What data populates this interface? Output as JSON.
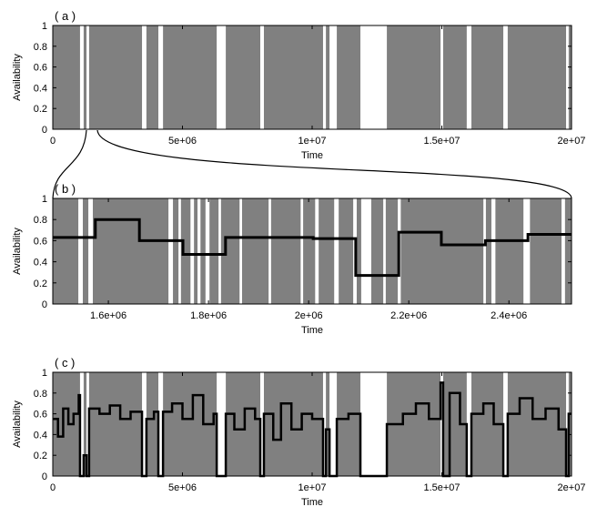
{
  "chart_data": [
    {
      "type": "step",
      "title": "( a )",
      "xlabel": "Time",
      "ylabel": "Availability",
      "xlim": [
        0,
        20000000
      ],
      "ylim": [
        0,
        1
      ],
      "xticks": [
        0,
        {
          "value": 5000000,
          "label": "5e+06"
        },
        {
          "value": 10000000,
          "label": "1e+07"
        },
        {
          "value": 15000000,
          "label": "1.5e+07"
        },
        {
          "value": 20000000,
          "label": "2e+07"
        }
      ],
      "yticks": [
        0,
        0.2,
        0.4,
        0.6,
        0.8,
        1
      ],
      "series": [
        {
          "style": "bars",
          "color": "#808080",
          "x": [
            0,
            1050000,
            1190000,
            1300000,
            1400000,
            3440000,
            3610000,
            4070000,
            4250000,
            6320000,
            6670000,
            8000000,
            8140000,
            10420000,
            10530000,
            10670000,
            10950000,
            11860000,
            12880000,
            14950000,
            15050000,
            15960000,
            16140000,
            17370000,
            17540000,
            19790000,
            19890000
          ],
          "values": [
            1,
            0,
            1,
            0,
            1,
            0,
            1,
            0,
            1,
            0,
            1,
            0,
            1,
            0,
            1,
            0,
            1,
            0,
            1,
            0,
            1,
            0,
            1,
            0,
            1,
            0,
            1
          ]
        }
      ]
    },
    {
      "type": "step",
      "title": "( b )",
      "xlabel": "Time",
      "ylabel": "Availability",
      "xlim": [
        1489000,
        2525000
      ],
      "ylim": [
        0,
        1
      ],
      "xticks": [
        {
          "value": 1600000,
          "label": "1.6e+06"
        },
        {
          "value": 1800000,
          "label": "1.8e+06"
        },
        {
          "value": 2000000,
          "label": "2e+06"
        },
        {
          "value": 2200000,
          "label": "2.2e+06"
        },
        {
          "value": 2400000,
          "label": "2.4e+06"
        }
      ],
      "yticks": [
        0,
        0.2,
        0.4,
        0.6,
        0.8,
        1
      ],
      "series": [
        {
          "style": "bars",
          "color": "#808080",
          "x": [
            1489000,
            1540000,
            1549000,
            1560000,
            1569000,
            1720000,
            1729000,
            1740000,
            1745000,
            1764000,
            1771000,
            1778000,
            1784000,
            1794000,
            1802000,
            1820000,
            1825000,
            1862000,
            1867000,
            1920000,
            1925000,
            1984000,
            1989000,
            2013000,
            2020000,
            2051000,
            2060000,
            2089000,
            2096000,
            2105000,
            2125000,
            2149000,
            2154000,
            2178000,
            2184000,
            2349000,
            2354000,
            2365000,
            2373000,
            2429000,
            2442000,
            2505000,
            2512000
          ],
          "values": [
            1,
            0,
            1,
            0,
            1,
            0,
            1,
            0,
            1,
            0,
            1,
            0,
            1,
            0,
            1,
            0,
            1,
            0,
            1,
            0,
            1,
            0,
            1,
            0,
            1,
            0,
            1,
            0,
            1,
            0,
            1,
            0,
            1,
            0,
            1,
            0,
            1,
            0,
            1,
            0,
            1,
            0,
            1
          ]
        },
        {
          "style": "step",
          "color": "#000000",
          "width": 3,
          "x": [
            1489000,
            1574000,
            1662000,
            1749000,
            1834000,
            2009000,
            2094000,
            2180000,
            2265000,
            2353000,
            2438000
          ],
          "values": [
            0.63,
            0.8,
            0.6,
            0.47,
            0.63,
            0.62,
            0.27,
            0.68,
            0.56,
            0.6,
            0.66
          ]
        }
      ]
    },
    {
      "type": "step",
      "title": "( c )",
      "xlabel": "Time",
      "ylabel": "Availability",
      "xlim": [
        0,
        20000000
      ],
      "ylim": [
        0,
        1
      ],
      "xticks": [
        0,
        {
          "value": 5000000,
          "label": "5e+06"
        },
        {
          "value": 10000000,
          "label": "1e+07"
        },
        {
          "value": 15000000,
          "label": "1.5e+07"
        },
        {
          "value": 20000000,
          "label": "2e+07"
        }
      ],
      "yticks": [
        0,
        0.2,
        0.4,
        0.6,
        0.8,
        1
      ],
      "series": [
        {
          "style": "bars",
          "color": "#808080",
          "x": [
            0,
            1050000,
            1190000,
            1300000,
            1400000,
            3440000,
            3610000,
            4070000,
            4250000,
            6320000,
            6670000,
            8000000,
            8140000,
            10420000,
            10530000,
            10670000,
            10950000,
            11860000,
            12880000,
            14950000,
            15050000,
            15960000,
            16140000,
            17370000,
            17540000,
            19790000,
            19890000
          ],
          "values": [
            1,
            0,
            1,
            0,
            1,
            0,
            1,
            0,
            1,
            0,
            1,
            0,
            1,
            0,
            1,
            0,
            1,
            0,
            1,
            0,
            1,
            0,
            1,
            0,
            1,
            0,
            1
          ]
        },
        {
          "style": "step",
          "color": "#000000",
          "width": 2.5,
          "x": [
            0,
            200000,
            400000,
            600000,
            800000,
            1000000,
            1050000,
            1190000,
            1300000,
            1400000,
            1800000,
            2200000,
            2600000,
            3000000,
            3440000,
            3610000,
            3900000,
            4070000,
            4250000,
            4600000,
            5000000,
            5400000,
            5800000,
            6200000,
            6320000,
            6670000,
            7000000,
            7400000,
            7800000,
            8000000,
            8140000,
            8500000,
            8800000,
            9200000,
            9600000,
            10000000,
            10420000,
            10530000,
            10670000,
            10950000,
            11400000,
            11860000,
            12880000,
            13500000,
            14000000,
            14500000,
            14950000,
            15050000,
            15300000,
            15700000,
            15960000,
            16140000,
            16600000,
            17000000,
            17370000,
            17540000,
            18000000,
            18500000,
            19000000,
            19500000,
            19790000,
            19890000
          ],
          "values": [
            0.55,
            0.38,
            0.65,
            0.5,
            0.6,
            0.78,
            0,
            0.2,
            0,
            0.65,
            0.6,
            0.68,
            0.55,
            0.62,
            0,
            0.55,
            0.62,
            0,
            0.62,
            0.7,
            0.55,
            0.78,
            0.5,
            0.6,
            0,
            0.6,
            0.45,
            0.65,
            0.55,
            0,
            0.6,
            0.35,
            0.7,
            0.45,
            0.6,
            0.55,
            0,
            0.45,
            0,
            0.55,
            0.6,
            0,
            0.5,
            0.6,
            0.7,
            0.55,
            0.9,
            0,
            0.8,
            0.5,
            0,
            0.6,
            0.7,
            0.5,
            0,
            0.6,
            0.75,
            0.55,
            0.65,
            0.45,
            0,
            0.6
          ]
        }
      ]
    }
  ]
}
